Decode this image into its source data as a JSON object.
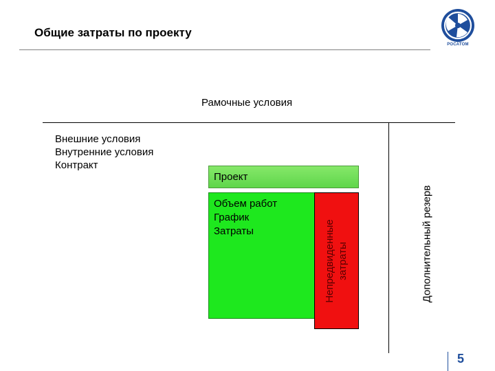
{
  "header": {
    "title": "Общие затраты по проекту",
    "logo_text": "РОСАТОМ",
    "logo_icon": "rosatom-atom-icon",
    "logo_color": "#1f4e9c"
  },
  "diagram": {
    "frame_label": "Рамочные условия",
    "conditions": [
      "Внешние условия",
      "Внутренние условия",
      "Контракт"
    ],
    "project_label": "Проект",
    "work_items": [
      "Объем работ",
      "График",
      "Затраты"
    ],
    "unforeseen_lines": [
      "Непредвиденные",
      "затраты"
    ],
    "reserve_label": "Дополнительный резерв",
    "colors": {
      "project_bar": "#6fdf55",
      "work_box": "#1ee81e",
      "unforeseen_box": "#f01010"
    }
  },
  "footer": {
    "page_number": "5"
  }
}
